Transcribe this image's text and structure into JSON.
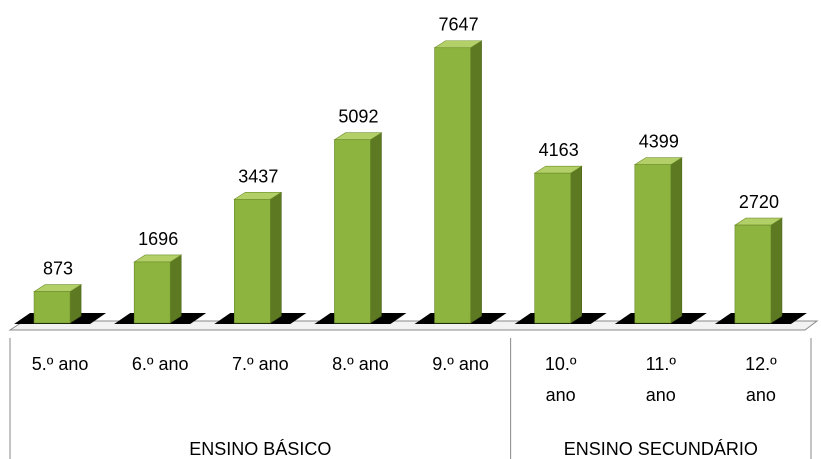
{
  "chart_data": {
    "type": "bar",
    "categories": [
      "5.º ano",
      "6.º ano",
      "7.º ano",
      "8.º ano",
      "9.º ano",
      "10.º ano",
      "11.º ano",
      "12.º ano"
    ],
    "category_label_lines": [
      [
        "5.º ano"
      ],
      [
        "6.º ano"
      ],
      [
        "7.º ano"
      ],
      [
        "8.º ano"
      ],
      [
        "9.º ano"
      ],
      [
        "10.º",
        "ano"
      ],
      [
        "11.º",
        "ano"
      ],
      [
        "12.º",
        "ano"
      ]
    ],
    "values": [
      873,
      1696,
      3437,
      5092,
      7647,
      4163,
      4399,
      2720
    ],
    "groups": [
      {
        "label": "ENSINO BÁSICO",
        "categories": [
          "5.º ano",
          "6.º ano",
          "7.º ano",
          "8.º ano",
          "9.º ano"
        ]
      },
      {
        "label": "ENSINO SECUNDÁRIO",
        "categories": [
          "10.º ano",
          "11.º ano",
          "12.º ano"
        ]
      }
    ],
    "title": "",
    "xlabel": "",
    "ylabel": "",
    "ylim": [
      0,
      8000
    ],
    "grid": false,
    "legend": "none",
    "three_d": true,
    "colors": {
      "bar_front": "#8db43e",
      "bar_side": "#5d7a22",
      "bar_top": "#b3d068",
      "floor": "#000000",
      "axis_lines": "#888888"
    }
  }
}
